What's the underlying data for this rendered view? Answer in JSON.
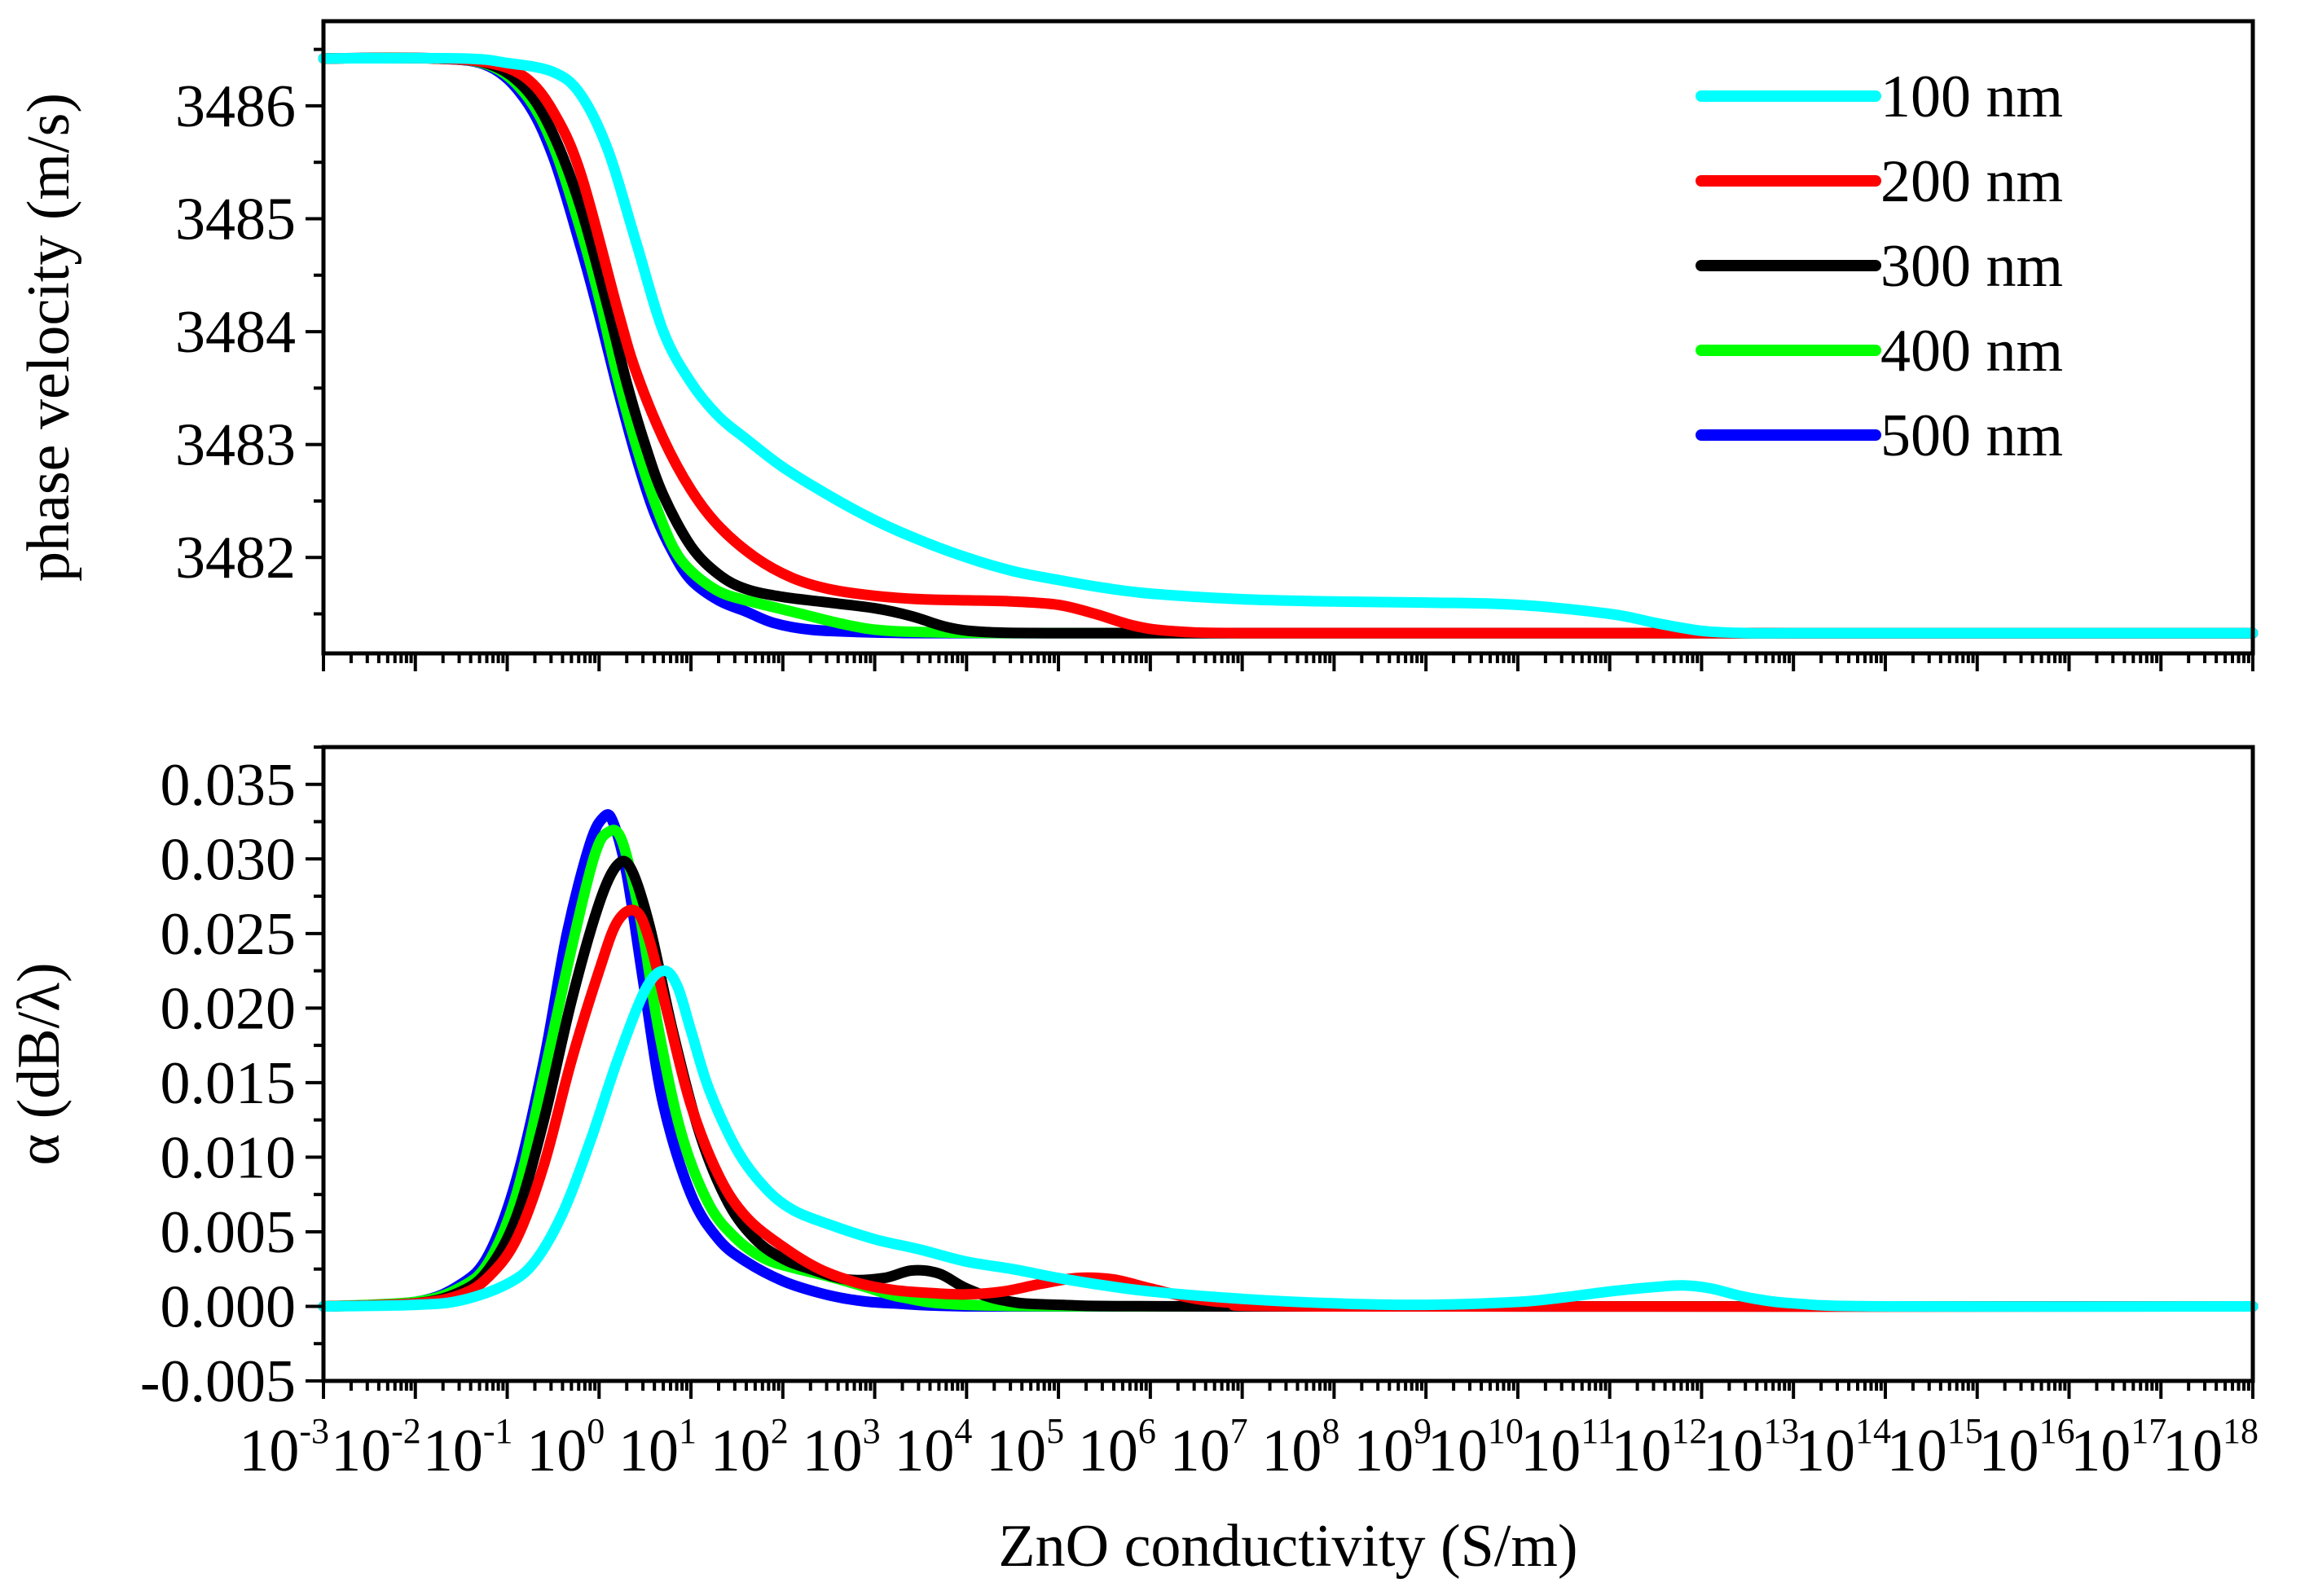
{
  "chart_data": [
    {
      "type": "line",
      "panel": "top",
      "title": "",
      "xlabel": "",
      "ylabel": "phase velocity (m/s)",
      "xscale": "log10",
      "xlim": [
        -3,
        18
      ],
      "ylim": [
        3481.15,
        3486.75
      ],
      "yticks": [
        3482,
        3483,
        3484,
        3485,
        3486
      ],
      "ytick_labels": [
        "3482",
        "3483",
        "3484",
        "3485",
        "3486"
      ],
      "legend": {
        "position": "top-right",
        "entries": [
          "100 nm",
          "200 nm",
          "300 nm",
          "400 nm",
          "500 nm"
        ]
      },
      "series": [
        {
          "name": "500 nm",
          "color": "#0000ff",
          "x": [
            -3,
            -1.8,
            -1.2,
            -0.8,
            -0.5,
            -0.2,
            0,
            0.2,
            0.4,
            0.6,
            0.8,
            1.0,
            1.3,
            1.6,
            1.9,
            2.3,
            2.8,
            3.5,
            5,
            8,
            12,
            18
          ],
          "y": [
            3486.42,
            3486.42,
            3486.35,
            3486.05,
            3485.55,
            3484.75,
            3484.15,
            3483.5,
            3482.9,
            3482.4,
            3482.05,
            3481.8,
            3481.62,
            3481.52,
            3481.42,
            3481.36,
            3481.34,
            3481.33,
            3481.33,
            3481.33,
            3481.33,
            3481.33
          ]
        },
        {
          "name": "400 nm",
          "color": "#00ff00",
          "x": [
            -3,
            -1.8,
            -1.2,
            -0.8,
            -0.5,
            -0.2,
            0,
            0.2,
            0.4,
            0.6,
            0.8,
            1.0,
            1.3,
            1.6,
            1.9,
            2.2,
            2.6,
            3.0,
            3.5,
            4.5,
            8,
            12,
            18
          ],
          "y": [
            3486.42,
            3486.42,
            3486.36,
            3486.1,
            3485.65,
            3484.9,
            3484.3,
            3483.6,
            3483.0,
            3482.5,
            3482.1,
            3481.88,
            3481.7,
            3481.62,
            3481.56,
            3481.5,
            3481.42,
            3481.36,
            3481.34,
            3481.33,
            3481.33,
            3481.33,
            3481.33
          ]
        },
        {
          "name": "300 nm",
          "color": "#000000",
          "x": [
            -3,
            -1.8,
            -1.2,
            -0.8,
            -0.5,
            -0.2,
            0.1,
            0.3,
            0.5,
            0.7,
            1.0,
            1.3,
            1.6,
            2.0,
            2.5,
            3.0,
            3.4,
            3.8,
            4.2,
            5,
            8,
            12,
            18
          ],
          "y": [
            3486.42,
            3486.42,
            3486.37,
            3486.15,
            3485.75,
            3485.1,
            3484.2,
            3483.55,
            3483.0,
            3482.55,
            3482.1,
            3481.85,
            3481.72,
            3481.65,
            3481.6,
            3481.55,
            3481.48,
            3481.38,
            3481.34,
            3481.33,
            3481.33,
            3481.33,
            3481.33
          ]
        },
        {
          "name": "200 nm",
          "color": "#ff0000",
          "x": [
            -3,
            -1.8,
            -1.2,
            -0.8,
            -0.5,
            -0.2,
            0.2,
            0.4,
            0.7,
            1.0,
            1.3,
            1.7,
            2.1,
            2.5,
            3.0,
            3.5,
            4.0,
            4.5,
            5.0,
            5.4,
            5.8,
            6.2,
            7,
            10,
            14,
            18
          ],
          "y": [
            3486.42,
            3486.42,
            3486.38,
            3486.25,
            3485.95,
            3485.4,
            3484.2,
            3483.65,
            3483.05,
            3482.6,
            3482.28,
            3482.0,
            3481.82,
            3481.72,
            3481.66,
            3481.63,
            3481.62,
            3481.61,
            3481.58,
            3481.5,
            3481.4,
            3481.35,
            3481.33,
            3481.33,
            3481.33,
            3481.33
          ]
        },
        {
          "name": "100 nm",
          "color": "#00ffff",
          "x": [
            -3,
            -1.5,
            -1.0,
            -0.5,
            -0.2,
            0.1,
            0.4,
            0.7,
            1.0,
            1.3,
            1.6,
            2.0,
            2.5,
            3.0,
            3.5,
            4.0,
            4.5,
            5.0,
            5.5,
            6.0,
            7.0,
            8.0,
            9.0,
            10.0,
            11.0,
            11.5,
            12.0,
            12.5,
            13.0,
            15.0,
            18.0
          ],
          "y": [
            3486.42,
            3486.42,
            3486.38,
            3486.3,
            3486.1,
            3485.6,
            3484.8,
            3484.0,
            3483.55,
            3483.25,
            3483.05,
            3482.8,
            3482.55,
            3482.33,
            3482.15,
            3482.0,
            3481.88,
            3481.8,
            3481.73,
            3481.68,
            3481.63,
            3481.61,
            3481.6,
            3481.58,
            3481.5,
            3481.42,
            3481.35,
            3481.33,
            3481.33,
            3481.33,
            3481.33
          ]
        }
      ]
    },
    {
      "type": "line",
      "panel": "bottom",
      "title": "",
      "xlabel": "ZnO conductivity (S/m)",
      "ylabel": "α (dB/λ)",
      "xscale": "log10",
      "xlim": [
        -3,
        18
      ],
      "ylim": [
        -0.005,
        0.0375
      ],
      "yticks": [
        -0.005,
        0.0,
        0.005,
        0.01,
        0.015,
        0.02,
        0.025,
        0.03,
        0.035
      ],
      "ytick_labels": [
        "-0.005",
        "0.000",
        "0.005",
        "0.010",
        "0.015",
        "0.020",
        "0.025",
        "0.030",
        "0.035"
      ],
      "xtick_base": "10",
      "xtick_exponents": [
        "-3",
        "-2",
        "-1",
        "0",
        "1",
        "2",
        "3",
        "4",
        "5",
        "6",
        "7",
        "8",
        "9",
        "10",
        "11",
        "12",
        "13",
        "14",
        "15",
        "16",
        "17",
        "18"
      ],
      "series": [
        {
          "name": "500 nm",
          "color": "#0000ff",
          "x": [
            -3,
            -2,
            -1.5,
            -1.2,
            -0.9,
            -0.6,
            -0.35,
            -0.1,
            0.05,
            0.15,
            0.3,
            0.5,
            0.7,
            1.0,
            1.3,
            1.6,
            2.0,
            2.4,
            2.8,
            3.2,
            4.0,
            6.0,
            10.0,
            18.0
          ],
          "y": [
            0.0,
            0.0003,
            0.0015,
            0.0035,
            0.0085,
            0.0165,
            0.025,
            0.031,
            0.0328,
            0.0325,
            0.029,
            0.021,
            0.0135,
            0.0075,
            0.0045,
            0.003,
            0.0017,
            0.0009,
            0.0004,
            0.0002,
            0.0,
            0.0,
            0.0,
            0.0
          ]
        },
        {
          "name": "400 nm",
          "color": "#00ff00",
          "x": [
            -3,
            -2,
            -1.5,
            -1.2,
            -0.9,
            -0.6,
            -0.3,
            -0.05,
            0.1,
            0.25,
            0.45,
            0.65,
            0.9,
            1.2,
            1.5,
            1.8,
            2.1,
            2.5,
            2.9,
            3.3,
            4.0,
            6.0,
            10.0,
            18.0
          ],
          "y": [
            0.0,
            0.0003,
            0.0013,
            0.003,
            0.0075,
            0.0155,
            0.024,
            0.0302,
            0.0318,
            0.0312,
            0.026,
            0.0185,
            0.0115,
            0.0068,
            0.0045,
            0.0032,
            0.0026,
            0.002,
            0.0013,
            0.0006,
            0.0001,
            0.0,
            0.0,
            0.0
          ]
        },
        {
          "name": "300 nm",
          "color": "#000000",
          "x": [
            -3,
            -2,
            -1.5,
            -1.2,
            -0.9,
            -0.6,
            -0.3,
            0.0,
            0.2,
            0.35,
            0.55,
            0.8,
            1.1,
            1.4,
            1.7,
            2.0,
            2.3,
            2.7,
            3.1,
            3.4,
            3.7,
            4.0,
            4.4,
            5.0,
            7.0,
            18.0
          ],
          "y": [
            0.0,
            0.0002,
            0.001,
            0.0025,
            0.006,
            0.0125,
            0.0205,
            0.027,
            0.0296,
            0.0293,
            0.0255,
            0.0185,
            0.0115,
            0.007,
            0.0045,
            0.0032,
            0.0025,
            0.0018,
            0.0019,
            0.0024,
            0.0022,
            0.0012,
            0.0004,
            0.0001,
            0.0,
            0.0
          ]
        },
        {
          "name": "200 nm",
          "color": "#ff0000",
          "x": [
            -3,
            -2,
            -1.5,
            -1.2,
            -0.9,
            -0.6,
            -0.3,
            0.0,
            0.2,
            0.4,
            0.55,
            0.75,
            1.0,
            1.3,
            1.6,
            2.0,
            2.4,
            2.8,
            3.2,
            3.6,
            4.0,
            4.4,
            4.8,
            5.2,
            5.6,
            6.0,
            6.5,
            7.0,
            8.0,
            18.0
          ],
          "y": [
            0.0,
            0.0002,
            0.0008,
            0.002,
            0.0045,
            0.0095,
            0.0165,
            0.0225,
            0.0258,
            0.0265,
            0.0245,
            0.0195,
            0.0135,
            0.0088,
            0.006,
            0.004,
            0.0025,
            0.0016,
            0.0011,
            0.0009,
            0.0008,
            0.001,
            0.0015,
            0.0019,
            0.0018,
            0.0012,
            0.0005,
            0.0002,
            0.0,
            0.0
          ]
        },
        {
          "name": "100 nm",
          "color": "#00ffff",
          "x": [
            -3,
            -2,
            -1.5,
            -1.0,
            -0.7,
            -0.4,
            -0.1,
            0.2,
            0.5,
            0.7,
            0.85,
            1.0,
            1.2,
            1.5,
            1.8,
            2.1,
            2.5,
            3.0,
            3.5,
            4.0,
            4.5,
            5.0,
            5.5,
            6.0,
            7.0,
            8.0,
            9.0,
            10.0,
            10.5,
            11.0,
            11.5,
            11.8,
            12.1,
            12.5,
            13.0,
            14.0,
            18.0
          ],
          "y": [
            0.0,
            0.0001,
            0.0004,
            0.0015,
            0.003,
            0.0062,
            0.011,
            0.0165,
            0.0212,
            0.0225,
            0.0215,
            0.0185,
            0.0145,
            0.0105,
            0.008,
            0.0065,
            0.0055,
            0.0045,
            0.0038,
            0.003,
            0.0025,
            0.0019,
            0.0014,
            0.001,
            0.0005,
            0.0002,
            0.0001,
            0.0003,
            0.0006,
            0.001,
            0.0013,
            0.0014,
            0.0012,
            0.0006,
            0.0002,
            0.0,
            0.0
          ]
        }
      ]
    }
  ]
}
